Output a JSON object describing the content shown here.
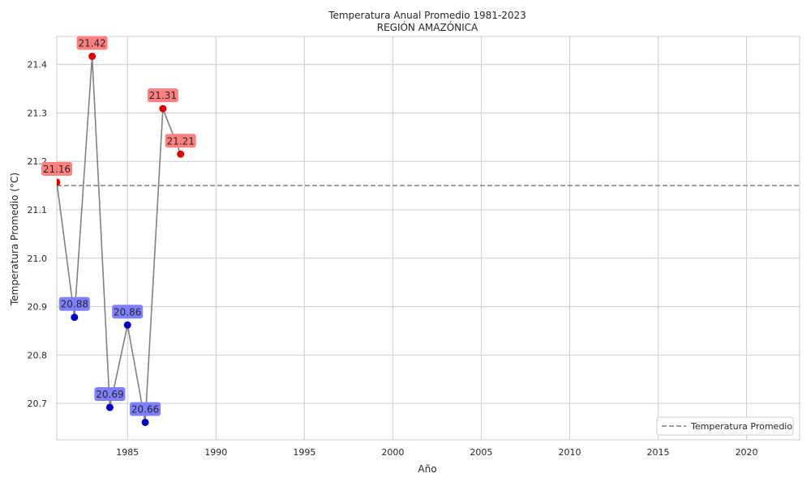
{
  "chart_data": {
    "type": "line",
    "title": "Temperatura Anual Promedio 1981-2023",
    "subtitle": "REGIÓN AMAZÓNICA",
    "xlabel": "Año",
    "ylabel": "Temperatura Promedio (°C)",
    "xlim": [
      1981,
      2023
    ],
    "ylim": [
      20.625,
      21.458
    ],
    "x_ticks": [
      1985,
      1990,
      1995,
      2000,
      2005,
      2010,
      2015,
      2020
    ],
    "y_ticks": [
      20.7,
      20.8,
      20.9,
      21.0,
      21.1,
      21.2,
      21.3,
      21.4
    ],
    "x_tick_labels": [
      "1985",
      "1990",
      "1995",
      "2000",
      "2005",
      "2010",
      "2015",
      "2020"
    ],
    "y_tick_labels": [
      "20.7",
      "20.8",
      "20.9",
      "21.0",
      "21.1",
      "21.2",
      "21.3",
      "21.4"
    ],
    "grid": true,
    "x": [
      1981,
      1982,
      1983,
      1984,
      1985,
      1986,
      1987,
      1988
    ],
    "values": [
      21.157,
      20.878,
      21.417,
      20.692,
      20.862,
      20.661,
      21.309,
      21.215
    ],
    "data_labels": [
      "21.16",
      "20.88",
      "21.42",
      "20.69",
      "20.86",
      "20.66",
      "21.31",
      "21.21"
    ],
    "reference_line": {
      "name": "Temperatura Promedio",
      "value": 21.15
    },
    "legend_position": "bottom-right",
    "colors": {
      "line": "#808080",
      "above": "#e00000",
      "below": "#0000cc",
      "above_label_bg": "#ff8080",
      "below_label_bg": "#8080ff",
      "reference": "#808080",
      "grid": "#cccccc"
    }
  }
}
